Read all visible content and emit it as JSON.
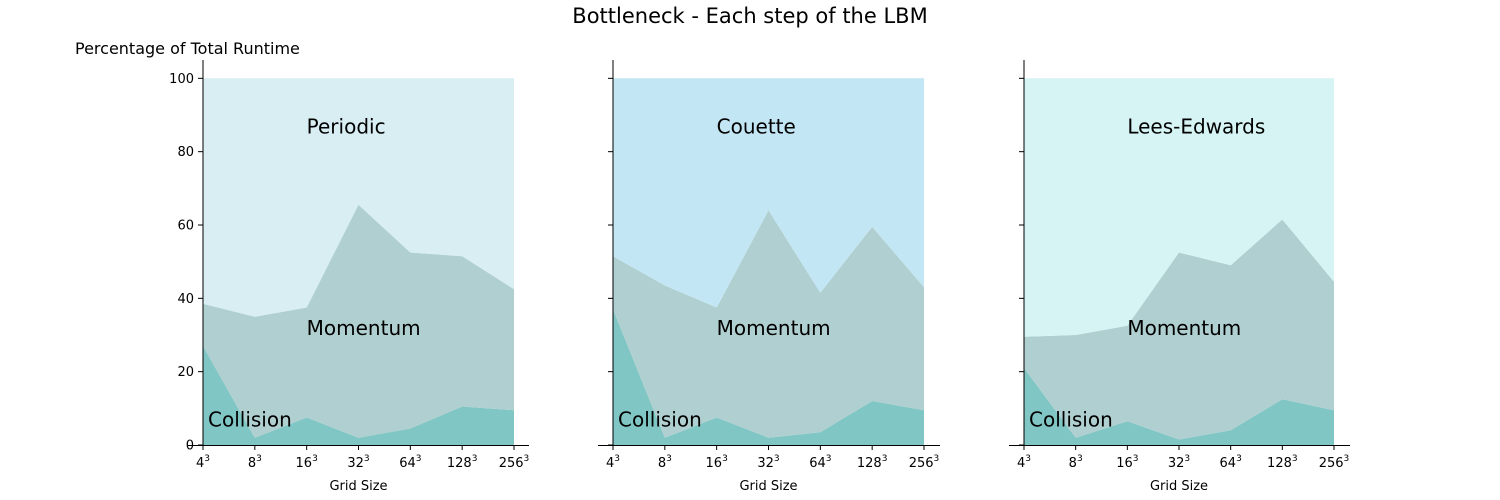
{
  "figure": {
    "title": "Bottleneck - Each step of the LBM",
    "ylabel": "Percentage of Total Runtime"
  },
  "chart_data": [
    {
      "type": "area",
      "stacked": true,
      "x": [
        "4",
        "8",
        "16",
        "32",
        "64",
        "128",
        "256"
      ],
      "x_exponent": "3",
      "xlabel": "Grid Size",
      "ylabel": "Percentage of Total Runtime",
      "ylim": [
        0,
        105
      ],
      "yticks": [
        0,
        20,
        40,
        60,
        80,
        100
      ],
      "series": [
        {
          "name": "Collision",
          "values": [
            27,
            2,
            7.5,
            2,
            4.5,
            10.5,
            9.5
          ],
          "color": "#80c6c4"
        },
        {
          "name": "Momentum",
          "values": [
            11.5,
            33,
            30,
            63.5,
            48,
            41,
            33
          ],
          "color": "#b0cfd0"
        },
        {
          "name": "Periodic",
          "values": [
            61.5,
            65,
            62.5,
            34.5,
            47.5,
            48.5,
            57.5
          ],
          "color": "#d8eef3"
        }
      ]
    },
    {
      "type": "area",
      "stacked": true,
      "x": [
        "4",
        "8",
        "16",
        "32",
        "64",
        "128",
        "256"
      ],
      "x_exponent": "3",
      "xlabel": "Grid Size",
      "ylim": [
        0,
        105
      ],
      "yticks": [
        0,
        20,
        40,
        60,
        80,
        100
      ],
      "series": [
        {
          "name": "Collision",
          "values": [
            37,
            2,
            7.5,
            2,
            3.5,
            12,
            9.5
          ],
          "color": "#80c6c4"
        },
        {
          "name": "Momentum",
          "values": [
            14.5,
            41.5,
            30,
            62,
            38,
            47.5,
            33.5
          ],
          "color": "#b0cfd0"
        },
        {
          "name": "Couette",
          "values": [
            48.5,
            56.5,
            62.5,
            36,
            58.5,
            40.5,
            57
          ],
          "color": "#c3e6f4"
        }
      ]
    },
    {
      "type": "area",
      "stacked": true,
      "x": [
        "4",
        "8",
        "16",
        "32",
        "64",
        "128",
        "256"
      ],
      "x_exponent": "3",
      "xlabel": "Grid Size",
      "ylim": [
        0,
        105
      ],
      "yticks": [
        0,
        20,
        40,
        60,
        80,
        100
      ],
      "series": [
        {
          "name": "Collision",
          "values": [
            21,
            2,
            6.5,
            1.5,
            4,
            12.5,
            9.5
          ],
          "color": "#80c6c4"
        },
        {
          "name": "Momentum",
          "values": [
            8.5,
            28,
            26,
            51,
            45,
            49,
            35
          ],
          "color": "#b0cfd0"
        },
        {
          "name": "Lees-Edwards",
          "values": [
            70.5,
            70,
            67.5,
            47.5,
            51,
            38.5,
            55.5
          ],
          "color": "#d5f4f3"
        }
      ]
    }
  ]
}
